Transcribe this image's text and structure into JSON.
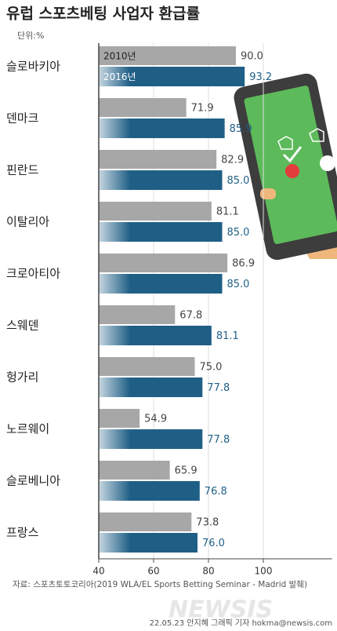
{
  "chart_data": {
    "type": "bar",
    "orientation": "horizontal",
    "title": "유럽 스포츠베팅 사업자 환급률",
    "unit": "단위:%",
    "categories": [
      "슬로바키아",
      "덴마크",
      "핀란드",
      "이탈리아",
      "크로아티아",
      "스웨덴",
      "헝가리",
      "노르웨이",
      "슬로베니아",
      "프랑스"
    ],
    "series": [
      {
        "name": "2010년",
        "color": "#a7a7a7",
        "values": [
          90.0,
          71.9,
          82.9,
          81.1,
          86.9,
          67.8,
          75.0,
          54.9,
          65.9,
          73.8
        ],
        "value_labels": [
          "90.0",
          "71.9",
          "82.9",
          "81.1",
          "86.9",
          "67.8",
          "75.0",
          "54.9",
          "65.9",
          "73.8"
        ]
      },
      {
        "name": "2016년",
        "color": "#1f5f86",
        "values": [
          93.2,
          85.9,
          85.0,
          85.0,
          85.0,
          81.1,
          77.8,
          77.8,
          76.8,
          76.0
        ],
        "value_labels": [
          "93.2",
          "85.9",
          "85.0",
          "85.0",
          "85.0",
          "81.1",
          "77.8",
          "77.8",
          "76.8",
          "76.0"
        ]
      }
    ],
    "xlim": [
      40,
      125
    ],
    "xticks": [
      40,
      60,
      80,
      100
    ],
    "grid": true,
    "source": "자료: 스포츠토토코리아(2019 WLA/EL Sports Betting Seminar - Madrid 발췌)",
    "credit": "22.05.23 안지혜 그래픽 기자 hokma@newsis.com",
    "watermark": "NEWSIS"
  }
}
